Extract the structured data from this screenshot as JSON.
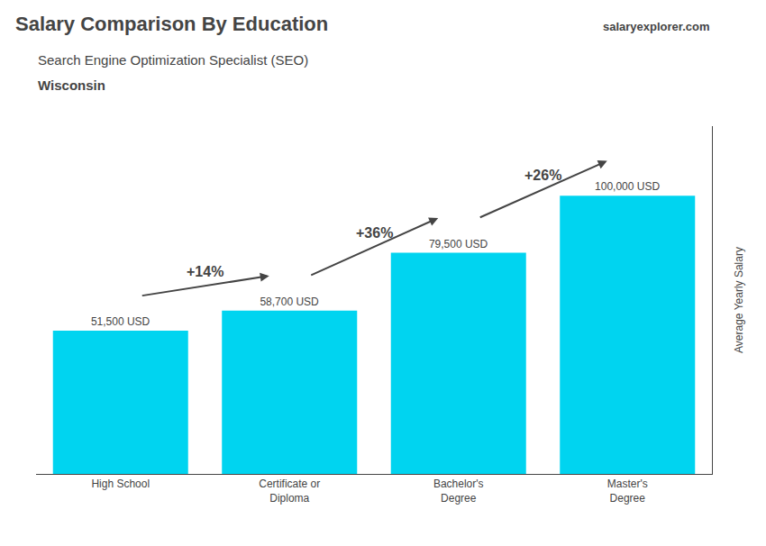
{
  "chart_data": {
    "type": "bar",
    "title": "Salary Comparison By Education",
    "subtitle": "Search Engine Optimization Specialist (SEO)",
    "location": "Wisconsin",
    "brand": [
      "salary",
      "explorer",
      ".com"
    ],
    "ylabel": "Average Yearly Salary",
    "categories": [
      "High School",
      "Certificate or\nDiploma",
      "Bachelor's\nDegree",
      "Master's\nDegree"
    ],
    "values": [
      51500,
      58700,
      79500,
      100000
    ],
    "value_labels": [
      "51,500 USD",
      "58,700 USD",
      "79,500 USD",
      "100,000 USD"
    ],
    "data_labels": true,
    "annotations": [
      "+14%",
      "+36%",
      "+26%"
    ],
    "color": "#00d4f0",
    "ylim": [
      0,
      125000
    ],
    "grid": false,
    "tick_labels": "x"
  }
}
